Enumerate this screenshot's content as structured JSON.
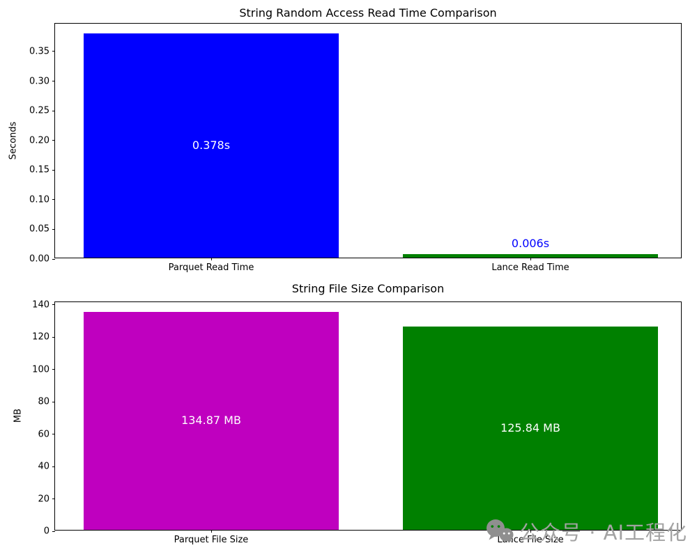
{
  "watermark": {
    "icon": "wechat-icon",
    "text": "公众号 · AI工程化"
  },
  "chart_data": [
    {
      "type": "bar",
      "title": "String Random Access Read Time Comparison",
      "ylabel": "Seconds",
      "categories": [
        "Parquet Read Time",
        "Lance Read Time"
      ],
      "values": [
        0.378,
        0.006
      ],
      "bar_colors": [
        "#0000ff",
        "#008000"
      ],
      "bar_labels": [
        "0.378s",
        "0.006s"
      ],
      "bar_label_colors": [
        "#ffffff",
        "#0000ff"
      ],
      "bar_label_placement": [
        "inside-center",
        "above"
      ],
      "ylim": [
        0,
        0.3969
      ],
      "ytick_values": [
        0,
        0.05,
        0.1,
        0.15,
        0.2,
        0.25,
        0.3,
        0.35
      ],
      "yticks": [
        "0.00",
        "0.05",
        "0.10",
        "0.15",
        "0.20",
        "0.25",
        "0.30",
        "0.35"
      ],
      "grid": false,
      "legend": "none"
    },
    {
      "type": "bar",
      "title": "String File Size Comparison",
      "ylabel": "MB",
      "categories": [
        "Parquet File Size",
        "Lance File Size"
      ],
      "values": [
        134.87,
        125.84
      ],
      "bar_colors": [
        "#bf00bf",
        "#008000"
      ],
      "bar_labels": [
        "134.87 MB",
        "125.84 MB"
      ],
      "bar_label_colors": [
        "#ffffff",
        "#ffffff"
      ],
      "bar_label_placement": [
        "inside-center",
        "inside-center"
      ],
      "ylim": [
        0,
        141.61
      ],
      "ytick_values": [
        0,
        20,
        40,
        60,
        80,
        100,
        120,
        140
      ],
      "yticks": [
        "0",
        "20",
        "40",
        "60",
        "80",
        "100",
        "120",
        "140"
      ],
      "grid": false,
      "legend": "none"
    }
  ]
}
